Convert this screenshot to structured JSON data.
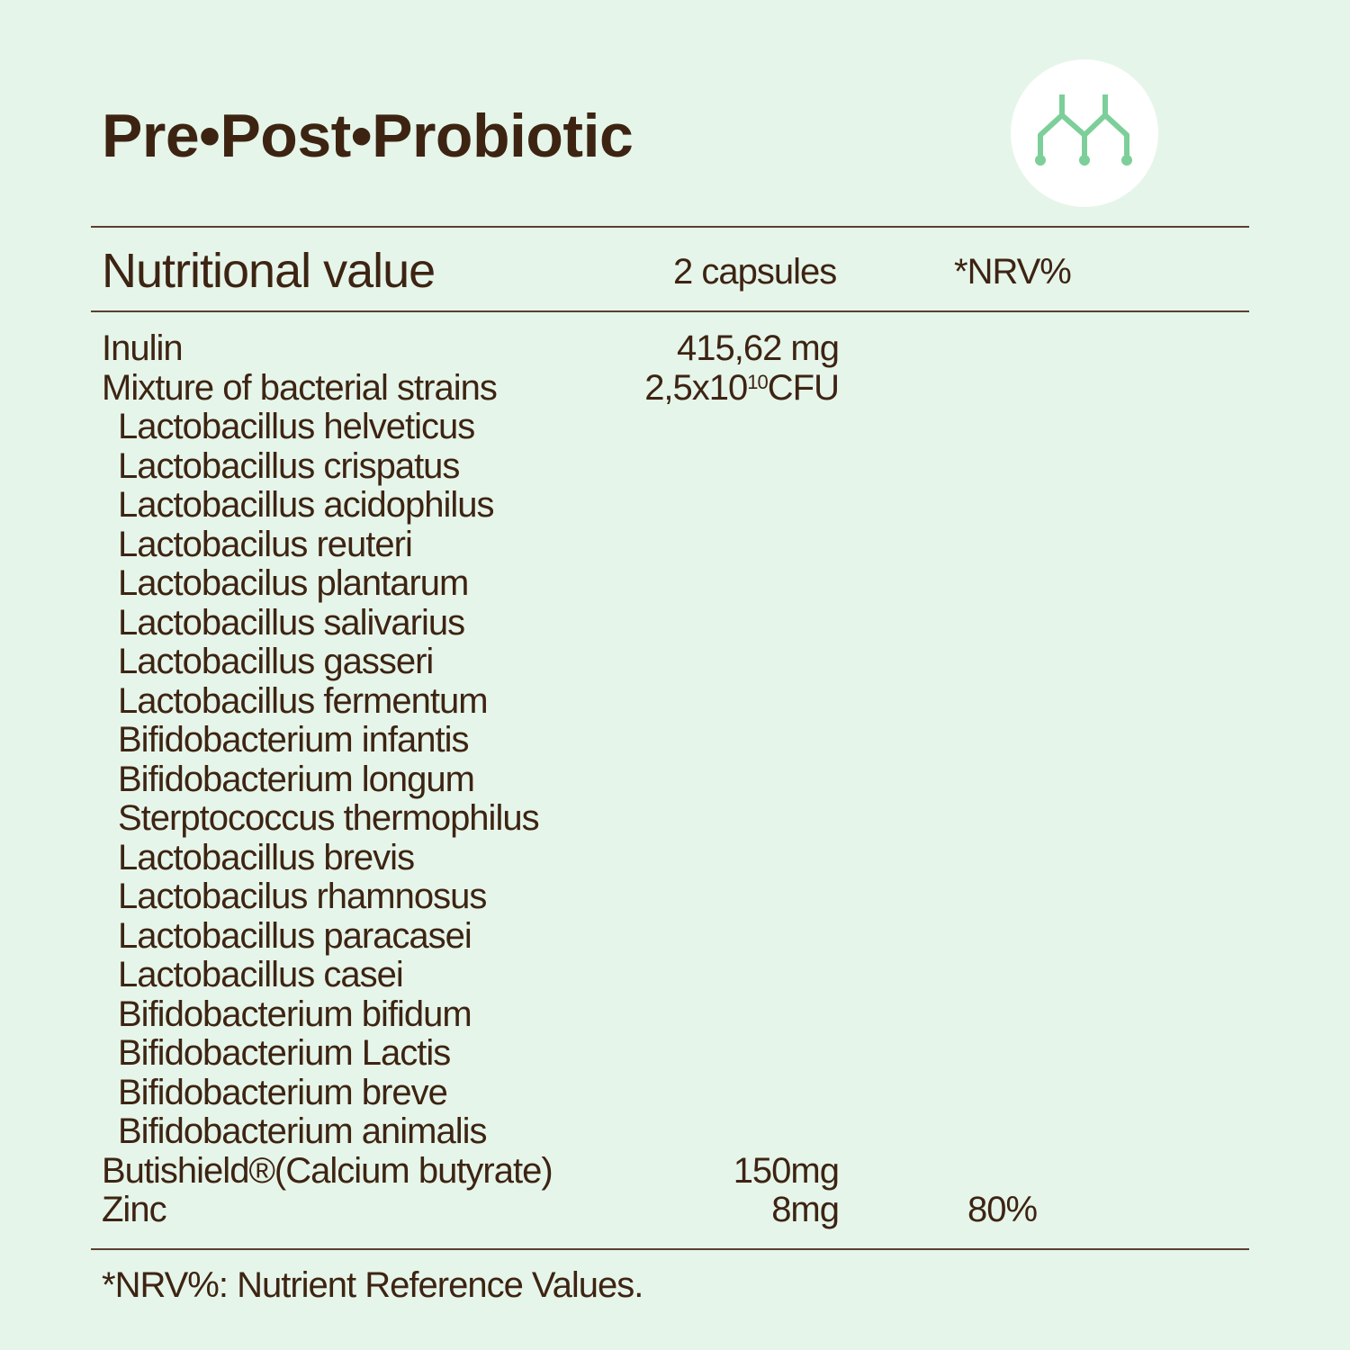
{
  "title": "Pre•Post•Probiotic",
  "logo": {
    "icon": "branching-molecule-icon",
    "color": "#7dcf99",
    "background": "#ffffff"
  },
  "table": {
    "header": {
      "label": "Nutritional value",
      "amount": "2 capsules",
      "nrv": "*NRV%"
    },
    "rows": [
      {
        "name": "Inulin",
        "amount": "415,62 mg",
        "nrv": ""
      },
      {
        "name": "Mixture of bacterial strains",
        "amount_base": "2,5x10",
        "amount_exp": "10",
        "amount_unit": "CFU",
        "nrv": ""
      },
      {
        "name": "Lactobacillus helveticus",
        "sub": true
      },
      {
        "name": "Lactobacillus crispatus",
        "sub": true
      },
      {
        "name": "Lactobacillus acidophilus",
        "sub": true
      },
      {
        "name": "Lactobacilus reuteri",
        "sub": true
      },
      {
        "name": "Lactobacilus plantarum",
        "sub": true
      },
      {
        "name": "Lactobacillus salivarius",
        "sub": true
      },
      {
        "name": "Lactobacillus gasseri",
        "sub": true
      },
      {
        "name": "Lactobacillus fermentum",
        "sub": true
      },
      {
        "name": "Bifidobacterium infantis",
        "sub": true
      },
      {
        "name": "Bifidobacterium longum",
        "sub": true
      },
      {
        "name": "Sterptococcus thermophilus",
        "sub": true
      },
      {
        "name": "Lactobacillus brevis",
        "sub": true
      },
      {
        "name": "Lactobacilus rhamnosus",
        "sub": true
      },
      {
        "name": "Lactobacillus paracasei",
        "sub": true
      },
      {
        "name": "Lactobacillus casei",
        "sub": true
      },
      {
        "name": "Bifidobacterium bifidum",
        "sub": true
      },
      {
        "name": "Bifidobacterium Lactis",
        "sub": true
      },
      {
        "name": "Bifidobacterium breve",
        "sub": true
      },
      {
        "name": "Bifidobacterium animalis",
        "sub": true
      },
      {
        "name": "Butishield®(Calcium butyrate)",
        "amount": "150mg",
        "nrv": ""
      },
      {
        "name": "Zinc",
        "amount": "8mg",
        "nrv": "80%"
      }
    ]
  },
  "footnote": "*NRV%: Nutrient Reference Values.",
  "colors": {
    "background": "#e6f5ea",
    "text": "#3d2412",
    "accent": "#7dcf99"
  }
}
